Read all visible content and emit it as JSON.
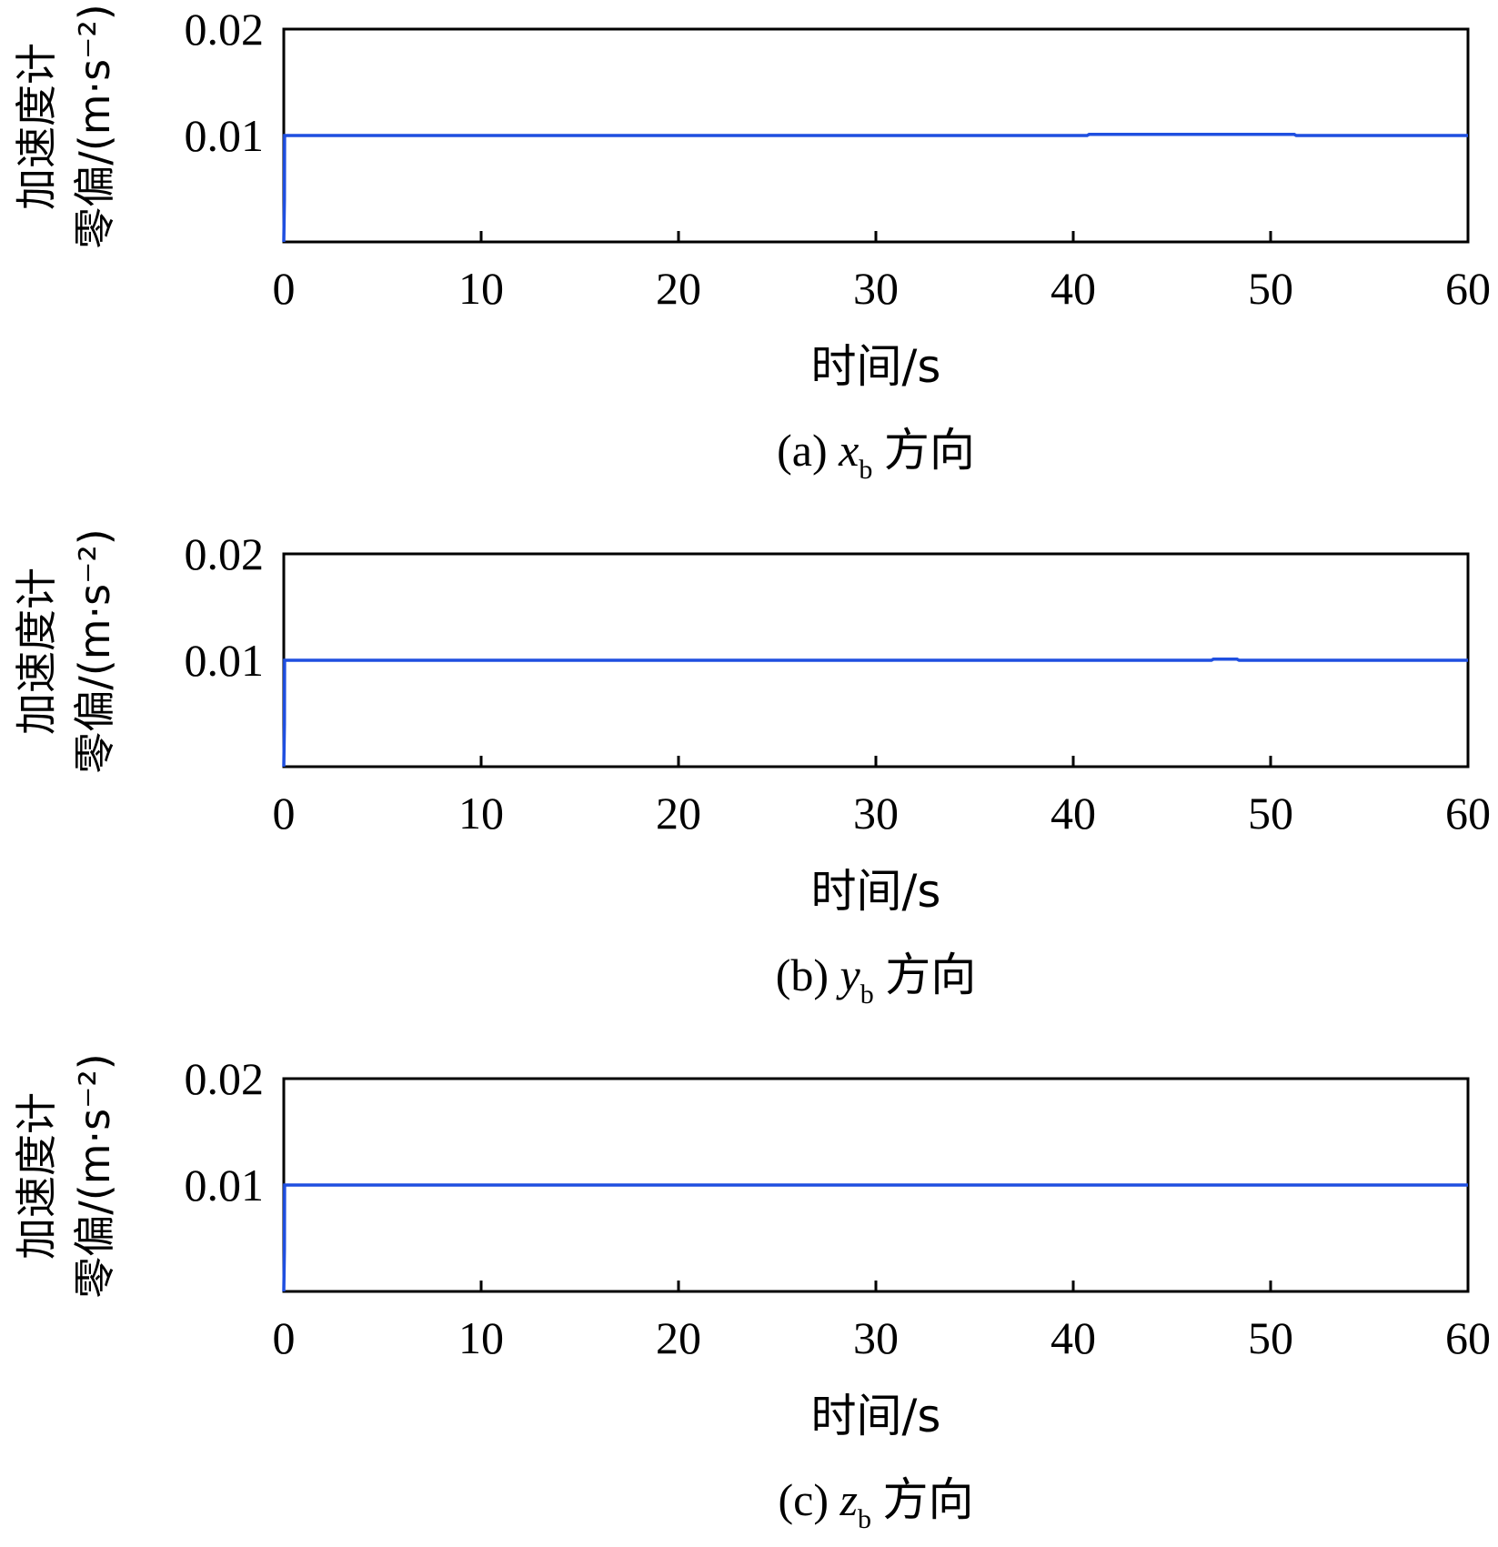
{
  "chart_data": [
    {
      "type": "line",
      "caption_prefix": "(a)",
      "caption_var": "x",
      "caption_sub": "b",
      "caption_suffix": "方向",
      "xlabel": "时间/s",
      "ylabel_line1": "加速度计",
      "ylabel_line2": "零偏/(m·s⁻²)",
      "xlim": [
        0,
        60
      ],
      "ylim": [
        0,
        0.02
      ],
      "xticks": [
        0,
        10,
        20,
        30,
        40,
        50,
        60
      ],
      "yticks": [
        0.01,
        0.02
      ],
      "xtick_labels": [
        "0",
        "10",
        "20",
        "30",
        "40",
        "50",
        "60"
      ],
      "ytick_labels": [
        "0.01",
        "0.02"
      ],
      "color": "#1f4fe0",
      "series": [
        {
          "x": [
            0,
            0.03,
            0.04,
            40.7,
            40.8,
            51.2,
            51.3,
            60
          ],
          "y": [
            0,
            0.004,
            0.01,
            0.01,
            0.0101,
            0.0101,
            0.01,
            0.01
          ]
        }
      ]
    },
    {
      "type": "line",
      "caption_prefix": "(b)",
      "caption_var": "y",
      "caption_sub": "b",
      "caption_suffix": "方向",
      "xlabel": "时间/s",
      "ylabel_line1": "加速度计",
      "ylabel_line2": "零偏/(m·s⁻²)",
      "xlim": [
        0,
        60
      ],
      "ylim": [
        0,
        0.02
      ],
      "xticks": [
        0,
        10,
        20,
        30,
        40,
        50,
        60
      ],
      "yticks": [
        0.01,
        0.02
      ],
      "xtick_labels": [
        "0",
        "10",
        "20",
        "30",
        "40",
        "50",
        "60"
      ],
      "ytick_labels": [
        "0.01",
        "0.02"
      ],
      "color": "#1f4fe0",
      "series": [
        {
          "x": [
            0,
            0.03,
            0.04,
            47.0,
            47.1,
            48.3,
            48.4,
            60
          ],
          "y": [
            0,
            0.004,
            0.01,
            0.01,
            0.0101,
            0.0101,
            0.01,
            0.01
          ]
        }
      ]
    },
    {
      "type": "line",
      "caption_prefix": "(c)",
      "caption_var": "z",
      "caption_sub": "b",
      "caption_suffix": "方向",
      "xlabel": "时间/s",
      "ylabel_line1": "加速度计",
      "ylabel_line2": "零偏/(m·s⁻²)",
      "xlim": [
        0,
        60
      ],
      "ylim": [
        0,
        0.02
      ],
      "xticks": [
        0,
        10,
        20,
        30,
        40,
        50,
        60
      ],
      "yticks": [
        0.01,
        0.02
      ],
      "xtick_labels": [
        "0",
        "10",
        "20",
        "30",
        "40",
        "50",
        "60"
      ],
      "ytick_labels": [
        "0.01",
        "0.02"
      ],
      "color": "#1f4fe0",
      "series": [
        {
          "x": [
            0,
            0.03,
            0.04,
            60
          ],
          "y": [
            0,
            0.004,
            0.01,
            0.01
          ]
        }
      ]
    }
  ]
}
